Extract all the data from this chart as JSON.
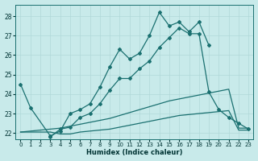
{
  "xlabel": "Humidex (Indice chaleur)",
  "bg_color": "#c8eaea",
  "line_color": "#1a7070",
  "grid_color": "#b0d8d8",
  "ylim": [
    21.7,
    28.6
  ],
  "xlim": [
    -0.5,
    23.5
  ],
  "yticks": [
    22,
    23,
    24,
    25,
    26,
    27,
    28
  ],
  "xticks": [
    0,
    1,
    2,
    3,
    4,
    5,
    6,
    7,
    8,
    9,
    10,
    11,
    12,
    13,
    14,
    15,
    16,
    17,
    18,
    19,
    20,
    21,
    22,
    23
  ],
  "series1_x": [
    0,
    1,
    3,
    4,
    5,
    6,
    7,
    8,
    9,
    10,
    11,
    12,
    13,
    14,
    15,
    16,
    17,
    18,
    19
  ],
  "series1_y": [
    24.5,
    23.3,
    21.85,
    22.1,
    23.0,
    23.2,
    23.5,
    24.35,
    25.4,
    26.3,
    25.8,
    26.1,
    27.0,
    28.2,
    27.5,
    27.7,
    27.2,
    27.7,
    26.5
  ],
  "series2_x": [
    0,
    1,
    2,
    3,
    4,
    5,
    6,
    7,
    8,
    9,
    10,
    11,
    12,
    13,
    14,
    15,
    16,
    17,
    18,
    19,
    20,
    21,
    22,
    23
  ],
  "series2_y": [
    22.05,
    22.1,
    22.15,
    22.2,
    22.25,
    22.35,
    22.45,
    22.55,
    22.65,
    22.75,
    22.9,
    23.05,
    23.2,
    23.35,
    23.5,
    23.65,
    23.75,
    23.85,
    23.95,
    24.05,
    24.15,
    24.25,
    22.25,
    22.25
  ],
  "series3_x": [
    3,
    4,
    5,
    6,
    7,
    8,
    9,
    10,
    11,
    12,
    13,
    14,
    15,
    16,
    17,
    18,
    19,
    20,
    21,
    22,
    23
  ],
  "series3_y": [
    21.8,
    22.2,
    22.3,
    22.8,
    23.0,
    23.5,
    24.2,
    24.8,
    24.8,
    25.3,
    25.7,
    26.4,
    26.9,
    27.4,
    27.1,
    27.1,
    24.1,
    23.2,
    22.8,
    22.5,
    22.2
  ],
  "series4_x": [
    0,
    1,
    2,
    3,
    4,
    5,
    6,
    7,
    8,
    9,
    10,
    11,
    12,
    13,
    14,
    15,
    16,
    17,
    18,
    19,
    20,
    21,
    22,
    23
  ],
  "series4_y": [
    22.05,
    22.05,
    22.05,
    22.05,
    21.95,
    21.95,
    22.05,
    22.1,
    22.15,
    22.2,
    22.3,
    22.4,
    22.5,
    22.6,
    22.7,
    22.8,
    22.9,
    22.95,
    23.0,
    23.05,
    23.1,
    23.15,
    22.15,
    22.15
  ]
}
